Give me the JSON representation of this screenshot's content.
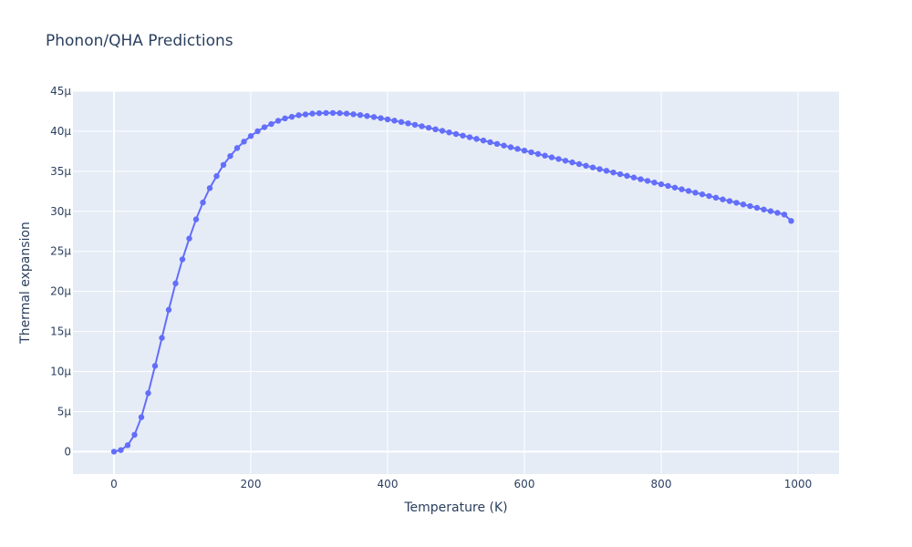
{
  "chart_data": {
    "type": "scatter",
    "mode": "lines+markers",
    "title": "Phonon/QHA Predictions",
    "xlabel": "Temperature (K)",
    "ylabel": "Thermal expansion",
    "xlim": [
      -60,
      1060
    ],
    "ylim": [
      -2.8,
      45
    ],
    "x_ticks": [
      0,
      200,
      400,
      600,
      800,
      1000
    ],
    "x_tick_labels": [
      "0",
      "200",
      "400",
      "600",
      "800",
      "1000"
    ],
    "y_ticks": [
      0,
      5,
      10,
      15,
      20,
      25,
      30,
      35,
      40,
      45
    ],
    "y_tick_labels": [
      "0",
      "5μ",
      "10μ",
      "15μ",
      "20μ",
      "25μ",
      "30μ",
      "35μ",
      "40μ",
      "45μ"
    ],
    "y_unit_note": "μ",
    "grid": true,
    "colors": {
      "series": "#636efa",
      "plot_bg": "#e5ecf6",
      "grid": "#ffffff",
      "text": "#2a3f5f"
    },
    "series": [
      {
        "x": [
          0,
          10,
          20,
          30,
          40,
          50,
          60,
          70,
          80,
          90,
          100,
          110,
          120,
          130,
          140,
          150,
          160,
          170,
          180,
          190,
          200,
          210,
          220,
          230,
          240,
          250,
          260,
          270,
          280,
          290,
          300,
          310,
          320,
          330,
          340,
          350,
          360,
          370,
          380,
          390,
          400,
          410,
          420,
          430,
          440,
          450,
          460,
          470,
          480,
          490,
          500,
          510,
          520,
          530,
          540,
          550,
          560,
          570,
          580,
          590,
          600,
          610,
          620,
          630,
          640,
          650,
          660,
          670,
          680,
          690,
          700,
          710,
          720,
          730,
          740,
          750,
          760,
          770,
          780,
          790,
          800,
          810,
          820,
          830,
          840,
          850,
          860,
          870,
          880,
          890,
          900,
          910,
          920,
          930,
          940,
          950,
          960,
          970,
          980,
          990
        ],
        "values": [
          0,
          0.2,
          0.8,
          2.1,
          4.3,
          7.3,
          10.7,
          14.2,
          17.7,
          21.0,
          24.0,
          26.6,
          29.0,
          31.1,
          32.9,
          34.4,
          35.8,
          36.9,
          37.9,
          38.7,
          39.4,
          40.0,
          40.5,
          40.9,
          41.3,
          41.6,
          41.8,
          42.0,
          42.1,
          42.2,
          42.25,
          42.28,
          42.28,
          42.26,
          42.2,
          42.12,
          42.02,
          41.9,
          41.77,
          41.63,
          41.48,
          41.32,
          41.15,
          40.98,
          40.8,
          40.62,
          40.43,
          40.24,
          40.05,
          39.85,
          39.65,
          39.45,
          39.25,
          39.04,
          38.84,
          38.63,
          38.42,
          38.21,
          38.0,
          37.79,
          37.58,
          37.37,
          37.16,
          36.95,
          36.74,
          36.53,
          36.32,
          36.11,
          35.9,
          35.69,
          35.48,
          35.27,
          35.06,
          34.85,
          34.64,
          34.43,
          34.22,
          34.01,
          33.8,
          33.59,
          33.38,
          33.17,
          32.96,
          32.75,
          32.54,
          32.33,
          32.12,
          31.91,
          31.7,
          31.49,
          31.28,
          31.07,
          30.86,
          30.65,
          30.44,
          30.23,
          30.02,
          29.81,
          29.6,
          28.8
        ]
      }
    ]
  }
}
